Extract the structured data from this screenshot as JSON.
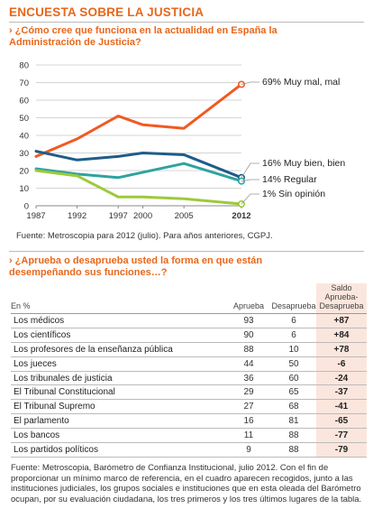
{
  "header": {
    "title": "ENCUESTA SOBRE LA JUSTICIA"
  },
  "question1": {
    "text": "¿Cómo  cree que funciona en la actualidad en España la Administración de Justicia?"
  },
  "source1": "Fuente: Metroscopia para 2012 (julio). Para años anteriores, CGPJ.",
  "chart_data": {
    "type": "line",
    "x": [
      1987,
      1992,
      1997,
      2000,
      2005,
      2012
    ],
    "ylim": [
      0,
      80
    ],
    "yticks": [
      0,
      10,
      20,
      30,
      40,
      50,
      60,
      70,
      80
    ],
    "grid": true,
    "series": [
      {
        "name": "Muy mal, mal",
        "label": "69% Muy mal, mal",
        "color": "#f05a22",
        "values": [
          28,
          38,
          51,
          46,
          44,
          69
        ]
      },
      {
        "name": "Muy bien, bien",
        "label": "16% Muy bien, bien",
        "color": "#1f5c88",
        "values": [
          31,
          26,
          28,
          30,
          29,
          16
        ]
      },
      {
        "name": "Regular",
        "label": "14% Regular",
        "color": "#2ea3a0",
        "values": [
          21,
          18,
          16,
          19,
          24,
          14
        ]
      },
      {
        "name": "Sin opinión",
        "label": "1% Sin opinión",
        "color": "#9ec93a",
        "values": [
          20,
          17,
          5,
          5,
          4,
          1
        ]
      }
    ]
  },
  "question2": {
    "text": "¿Aprueba o desaprueba usted la forma en que están desempeñando sus funciones…?"
  },
  "table": {
    "headers": {
      "label": "En %",
      "aprueba": "Aprueba",
      "desaprueba": "Desaprueba",
      "saldo": "Saldo Aprueba-Desaprueba"
    },
    "rows": [
      {
        "label": "Los médicos",
        "aprueba": "93",
        "desaprueba": "6",
        "saldo": "+87"
      },
      {
        "label": "Los científicos",
        "aprueba": "90",
        "desaprueba": "6",
        "saldo": "+84"
      },
      {
        "label": "Los profesores de la enseñanza pública",
        "aprueba": "88",
        "desaprueba": "10",
        "saldo": "+78"
      },
      {
        "label": "Los jueces",
        "aprueba": "44",
        "desaprueba": "50",
        "saldo": "-6"
      },
      {
        "label": "Los tribunales de justicia",
        "aprueba": "36",
        "desaprueba": "60",
        "saldo": "-24"
      },
      {
        "label": "El Tribunal Constitucional",
        "aprueba": "29",
        "desaprueba": "65",
        "saldo": "-37"
      },
      {
        "label": "El Tribunal Supremo",
        "aprueba": "27",
        "desaprueba": "68",
        "saldo": "-41"
      },
      {
        "label": "El parlamento",
        "aprueba": "16",
        "desaprueba": "81",
        "saldo": "-65"
      },
      {
        "label": "Los bancos",
        "aprueba": "11",
        "desaprueba": "88",
        "saldo": "-77"
      },
      {
        "label": "Los partidos políticos",
        "aprueba": "9",
        "desaprueba": "88",
        "saldo": "-79"
      }
    ]
  },
  "footnote": "Fuente: Metroscopia, Barómetro de Confianza Institucional, julio 2012. Con el fin de proporcionar un mínimo marco de referencia, en el cuadro aparecen recogidos, junto a las instituciones judiciales, los grupos sociales e instituciones que en esta oleada del Barómetro ocupan, por su evaluación ciudadana, los tres primeros y los tres últimos lugares de la tabla."
}
